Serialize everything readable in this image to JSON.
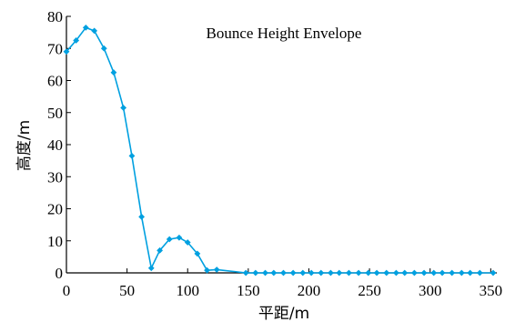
{
  "chart_data": {
    "type": "line",
    "title": "Bounce Height Envelope",
    "xlabel": "平距/m",
    "ylabel": "高度/m",
    "xlim": [
      0,
      355
    ],
    "ylim": [
      0,
      80
    ],
    "xticks": [
      0,
      50,
      100,
      150,
      200,
      250,
      300,
      350
    ],
    "yticks": [
      0,
      10,
      20,
      30,
      40,
      50,
      60,
      70,
      80
    ],
    "grid": false,
    "legend": "none",
    "series": [
      {
        "color": "#00a0e0",
        "marker": "diamond",
        "x": [
          0,
          8,
          16,
          23,
          31,
          39,
          47,
          54,
          62,
          70,
          77,
          85,
          93,
          100,
          108,
          116,
          124,
          148,
          156,
          164,
          171,
          179,
          187,
          195,
          202,
          210,
          218,
          225,
          233,
          241,
          249,
          256,
          264,
          272,
          279,
          287,
          295,
          303,
          310,
          318,
          326,
          333,
          341,
          352
        ],
        "y": [
          69,
          72.5,
          76.5,
          75.5,
          70,
          62.5,
          51.5,
          36.5,
          17.5,
          1.5,
          7,
          10.5,
          11,
          9.5,
          6,
          0.8,
          1,
          0,
          0,
          0,
          0,
          0,
          0,
          0,
          0,
          0,
          0,
          0,
          0,
          0,
          0,
          0,
          0,
          0,
          0,
          0,
          0,
          0,
          0,
          0,
          0,
          0,
          0,
          0
        ]
      }
    ]
  }
}
